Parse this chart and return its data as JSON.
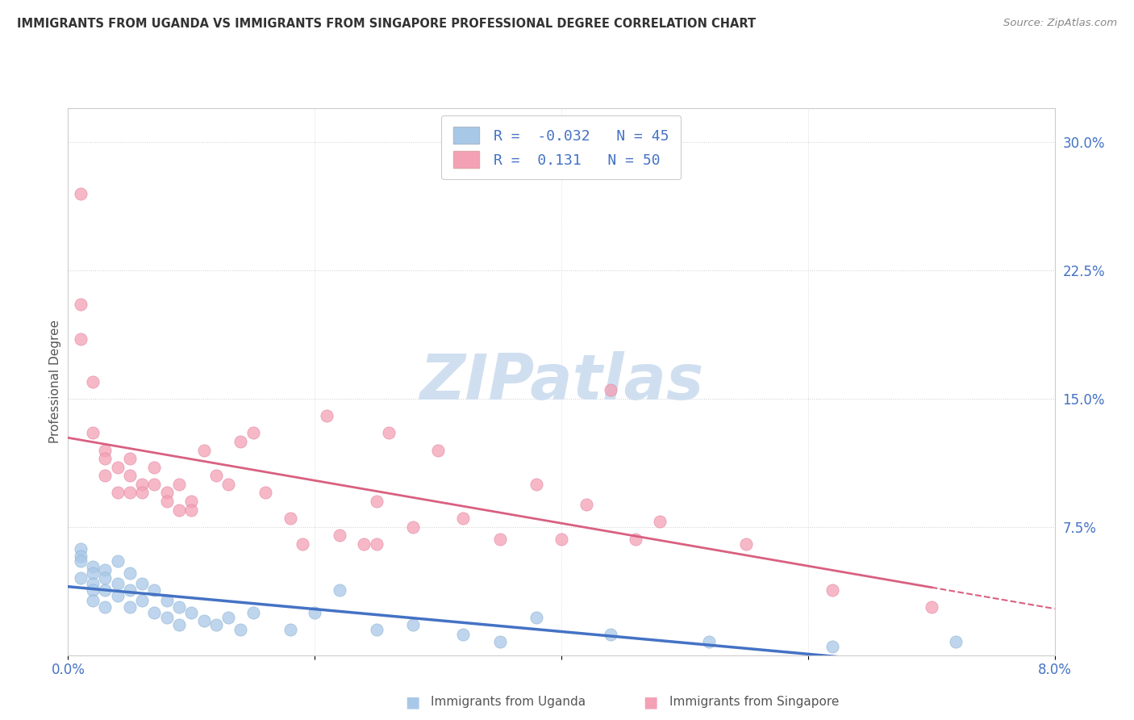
{
  "title": "IMMIGRANTS FROM UGANDA VS IMMIGRANTS FROM SINGAPORE PROFESSIONAL DEGREE CORRELATION CHART",
  "source": "Source: ZipAtlas.com",
  "legend_label1": "Immigrants from Uganda",
  "legend_label2": "Immigrants from Singapore",
  "ylabel": "Professional Degree",
  "xlim": [
    0.0,
    0.08
  ],
  "ylim": [
    0.0,
    0.32
  ],
  "xticks": [
    0.0,
    0.02,
    0.04,
    0.06,
    0.08
  ],
  "xtick_labels_outer": [
    "0.0%",
    "8.0%"
  ],
  "xtick_outer_pos": [
    0.0,
    0.08
  ],
  "yticks_right": [
    0.075,
    0.15,
    0.225,
    0.3
  ],
  "ytick_right_labels": [
    "7.5%",
    "15.0%",
    "22.5%",
    "30.0%"
  ],
  "r_uganda": -0.032,
  "n_uganda": 45,
  "r_singapore": 0.131,
  "n_singapore": 50,
  "color_uganda": "#a8c8e8",
  "color_singapore": "#f4a0b5",
  "color_uganda_line": "#4472C4",
  "color_singapore_line": "#d96080",
  "watermark": "ZIPatlas",
  "watermark_color": "#d0dff0",
  "background_color": "#ffffff",
  "uganda_x": [
    0.001,
    0.001,
    0.001,
    0.001,
    0.002,
    0.002,
    0.002,
    0.002,
    0.002,
    0.003,
    0.003,
    0.003,
    0.003,
    0.004,
    0.004,
    0.004,
    0.005,
    0.005,
    0.005,
    0.006,
    0.006,
    0.007,
    0.007,
    0.008,
    0.008,
    0.009,
    0.009,
    0.01,
    0.011,
    0.012,
    0.013,
    0.014,
    0.015,
    0.018,
    0.02,
    0.022,
    0.025,
    0.028,
    0.032,
    0.035,
    0.038,
    0.044,
    0.052,
    0.062,
    0.072
  ],
  "uganda_y": [
    0.062,
    0.058,
    0.055,
    0.045,
    0.052,
    0.048,
    0.042,
    0.038,
    0.032,
    0.05,
    0.045,
    0.038,
    0.028,
    0.055,
    0.042,
    0.035,
    0.048,
    0.038,
    0.028,
    0.042,
    0.032,
    0.038,
    0.025,
    0.032,
    0.022,
    0.028,
    0.018,
    0.025,
    0.02,
    0.018,
    0.022,
    0.015,
    0.025,
    0.015,
    0.025,
    0.038,
    0.015,
    0.018,
    0.012,
    0.008,
    0.022,
    0.012,
    0.008,
    0.005,
    0.008
  ],
  "singapore_x": [
    0.001,
    0.001,
    0.001,
    0.002,
    0.002,
    0.003,
    0.003,
    0.003,
    0.004,
    0.004,
    0.005,
    0.005,
    0.005,
    0.006,
    0.006,
    0.007,
    0.007,
    0.008,
    0.008,
    0.009,
    0.009,
    0.01,
    0.01,
    0.011,
    0.012,
    0.013,
    0.014,
    0.015,
    0.016,
    0.018,
    0.019,
    0.021,
    0.022,
    0.024,
    0.025,
    0.025,
    0.026,
    0.028,
    0.03,
    0.032,
    0.035,
    0.038,
    0.04,
    0.042,
    0.044,
    0.046,
    0.048,
    0.055,
    0.062,
    0.07
  ],
  "singapore_y": [
    0.27,
    0.205,
    0.185,
    0.16,
    0.13,
    0.12,
    0.115,
    0.105,
    0.11,
    0.095,
    0.115,
    0.105,
    0.095,
    0.1,
    0.095,
    0.11,
    0.1,
    0.095,
    0.09,
    0.1,
    0.085,
    0.09,
    0.085,
    0.12,
    0.105,
    0.1,
    0.125,
    0.13,
    0.095,
    0.08,
    0.065,
    0.14,
    0.07,
    0.065,
    0.065,
    0.09,
    0.13,
    0.075,
    0.12,
    0.08,
    0.068,
    0.1,
    0.068,
    0.088,
    0.155,
    0.068,
    0.078,
    0.065,
    0.038,
    0.028
  ]
}
